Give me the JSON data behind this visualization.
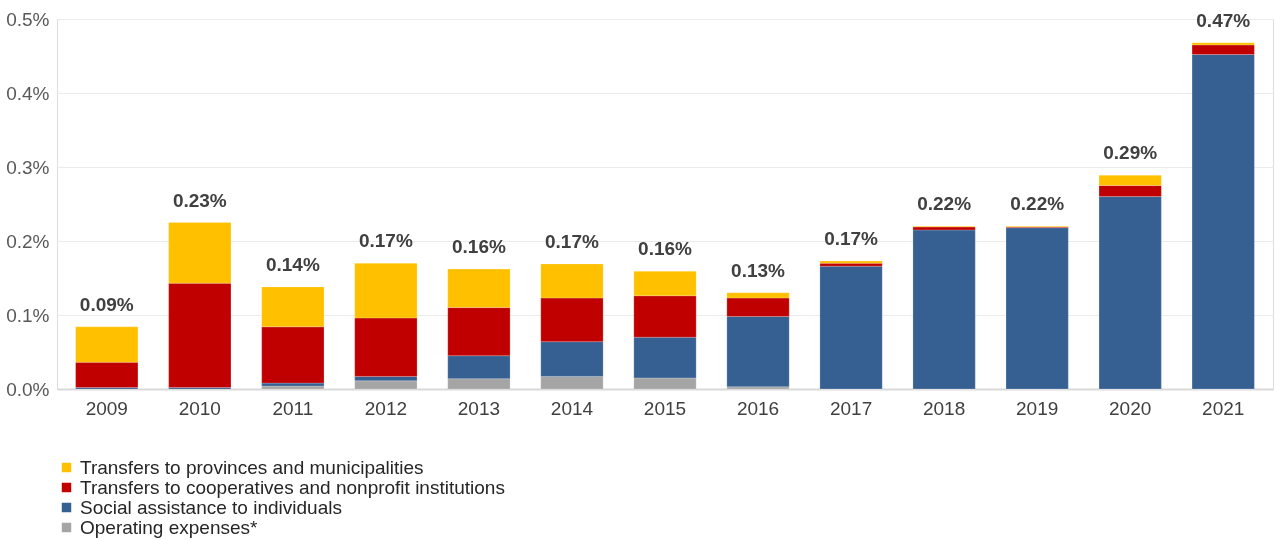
{
  "chart_data": {
    "type": "bar",
    "stacked": true,
    "categories": [
      "2009",
      "2010",
      "2011",
      "2012",
      "2013",
      "2014",
      "2015",
      "2016",
      "2017",
      "2018",
      "2019",
      "2020",
      "2021"
    ],
    "series": [
      {
        "name": "Operating expenses*",
        "color": "#a5a5a5",
        "values": [
          0.0,
          null,
          0.004,
          0.011,
          0.014,
          0.017,
          0.015,
          0.003,
          0.0,
          0.0,
          0.0,
          0.0,
          0.0
        ]
      },
      {
        "name": "Social assistance to individuals",
        "color": "#376092",
        "values": [
          0.002,
          0.002,
          0.004,
          0.006,
          0.031,
          0.047,
          0.055,
          0.095,
          0.166,
          0.215,
          0.218,
          0.26,
          0.452
        ]
      },
      {
        "name": "Transfers to cooperatives and nonprofit institutions",
        "color": "#c00000",
        "values": [
          0.034,
          0.141,
          0.076,
          0.079,
          0.065,
          0.059,
          0.056,
          0.025,
          0.004,
          0.004,
          0.001,
          0.015,
          0.013
        ]
      },
      {
        "name": "Transfers to provinces and municipalities",
        "color": "#ffc000",
        "values": [
          0.048,
          0.082,
          0.054,
          0.074,
          0.052,
          0.046,
          0.033,
          0.007,
          0.003,
          0.001,
          0.001,
          0.014,
          0.003
        ]
      }
    ],
    "totals": [
      "0.09%",
      "0.23%",
      "0.14%",
      "0.17%",
      "0.16%",
      "0.17%",
      "0.16%",
      "0.13%",
      "0.17%",
      "0.22%",
      "0.22%",
      "0.29%",
      "0.47%"
    ],
    "ylim": [
      0,
      0.5
    ],
    "yticks": [
      {
        "value": 0,
        "label": "0.0%"
      },
      {
        "value": 0.1,
        "label": "0.1%"
      },
      {
        "value": 0.2,
        "label": "0.2%"
      },
      {
        "value": 0.3,
        "label": "0.3%"
      },
      {
        "value": 0.4,
        "label": "0.4%"
      },
      {
        "value": 0.5,
        "label": "0.5%"
      }
    ],
    "grid": "y",
    "legend": "bottom"
  }
}
